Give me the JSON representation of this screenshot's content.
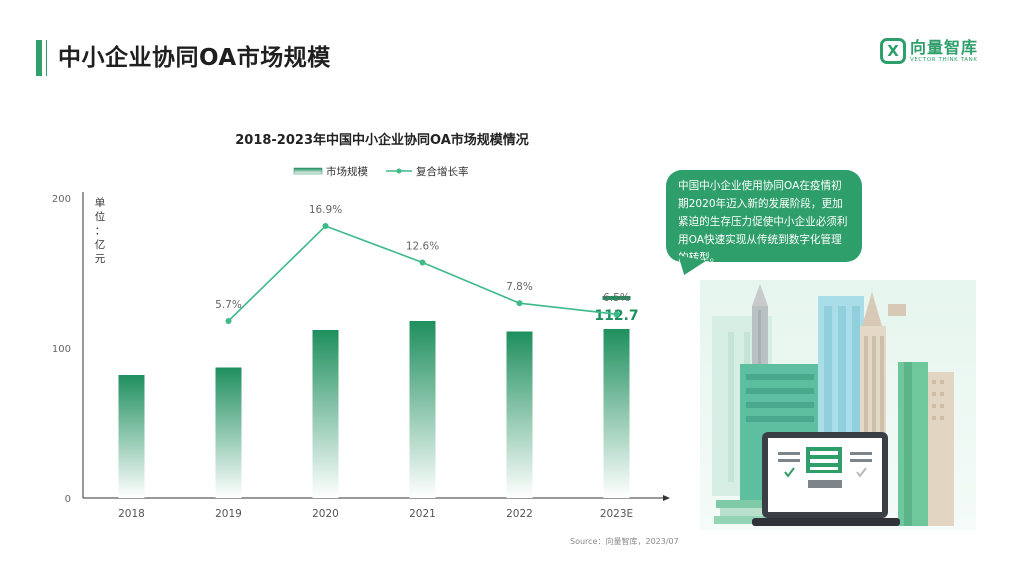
{
  "page": {
    "title": "中小企业协同OA市场规模",
    "logo_cn": "向量智库",
    "logo_en": "VECTOR THINK TANK",
    "logo_glyph": "X",
    "source": "Source：向量智库，2023/07"
  },
  "callout": {
    "text": "中国中小企业使用协同OA在疫情初期2020年迈入新的发展阶段，更加紧迫的生存压力促使中小企业必须利用OA快速实现从传统到数字化管理的转型。"
  },
  "colors": {
    "accent": "#2e9e6a",
    "bar_top": "#1f8f5e",
    "bar_bottom": "#ffffff",
    "line": "#3dba88",
    "axis": "#333333"
  },
  "chart_data": {
    "type": "bar",
    "title": "2018-2023年中国中小企业协同OA市场规模情况",
    "ylabel": "单位：亿元",
    "ylabel_chars": [
      "单",
      "位",
      "：",
      "亿",
      "元"
    ],
    "ylim": [
      0,
      200
    ],
    "yticks": [
      0,
      100,
      200
    ],
    "categories": [
      "2018",
      "2019",
      "2020",
      "2021",
      "2022",
      "2023E"
    ],
    "series": [
      {
        "name": "市场规模",
        "type": "bar",
        "values": [
          82,
          87,
          112,
          118,
          111,
          112.7
        ]
      },
      {
        "name": "复合增长率",
        "type": "line",
        "values": [
          null,
          5.7,
          16.9,
          12.6,
          7.8,
          6.5
        ],
        "labels": [
          "",
          "5.7%",
          "16.9%",
          "12.6%",
          "7.8%",
          "6.5%"
        ]
      }
    ],
    "highlight": {
      "category": "2023E",
      "label": "112.7"
    },
    "legend": "top-center",
    "grid": false
  }
}
